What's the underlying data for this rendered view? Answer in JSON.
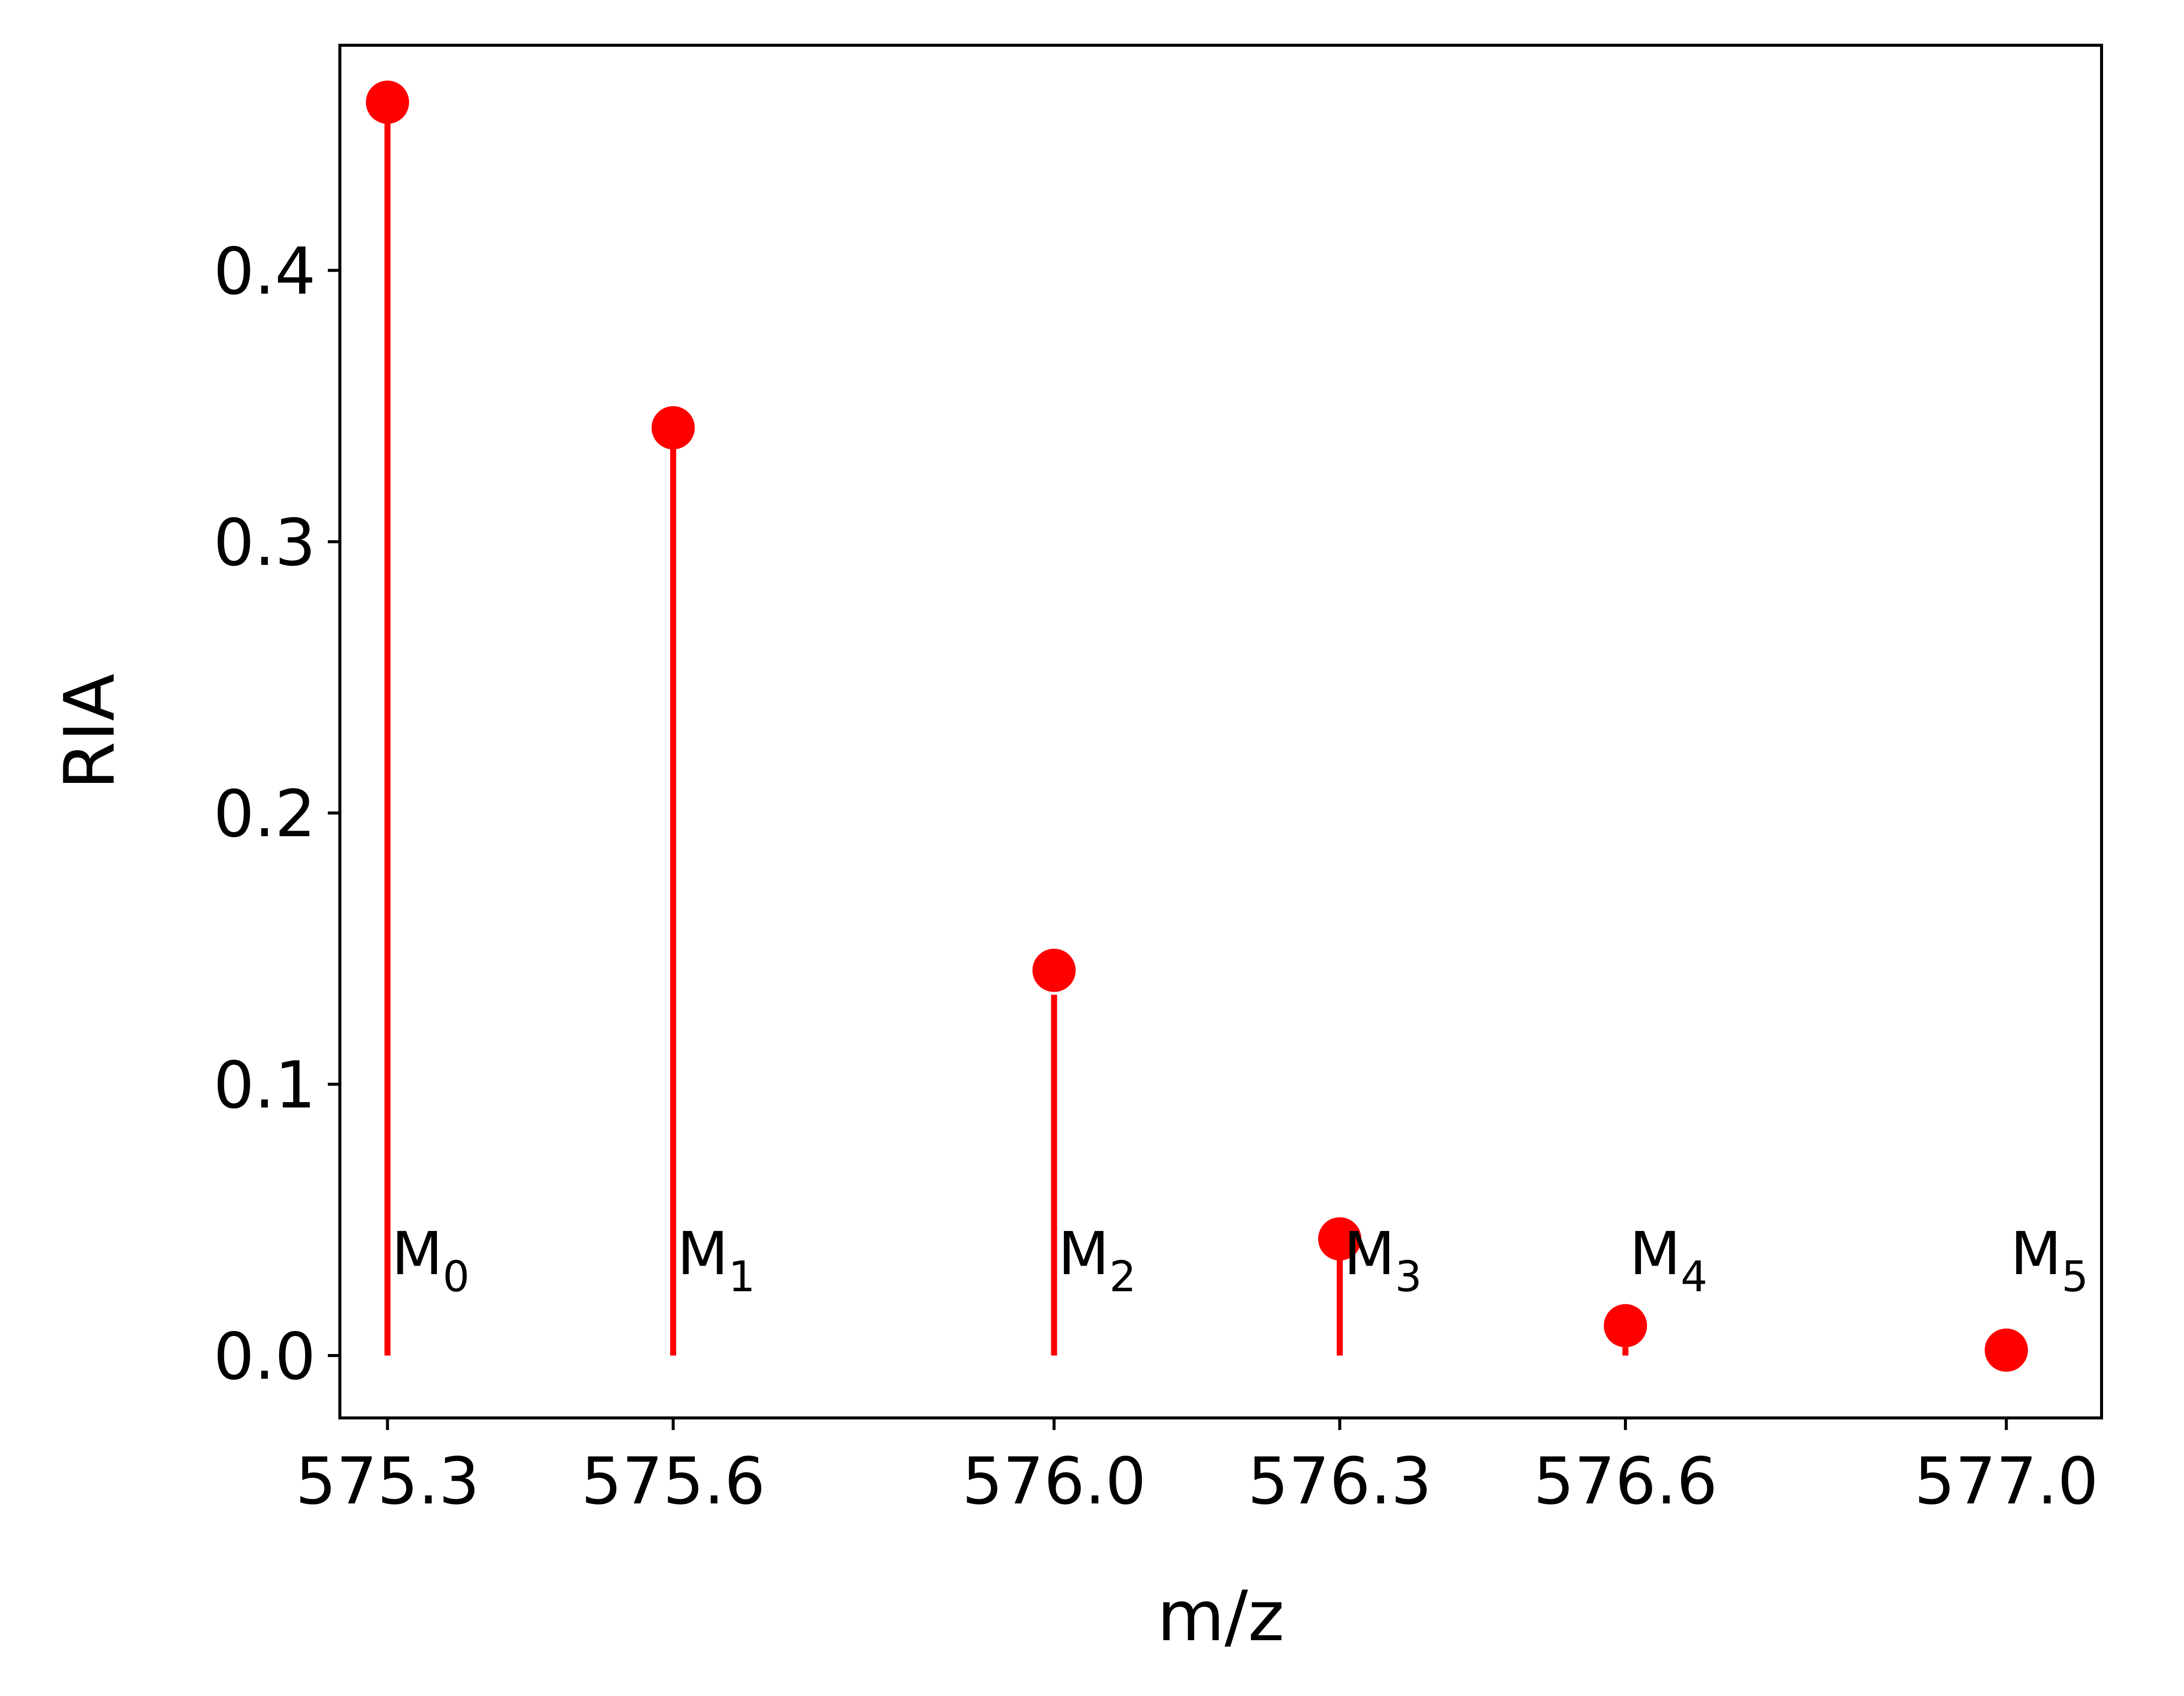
{
  "chart_data": {
    "type": "scatter",
    "title": "",
    "xlabel": "m/z",
    "ylabel": "RIA",
    "xlim": [
      575.25,
      577.1
    ],
    "ylim": [
      -0.023,
      0.483
    ],
    "x_ticks": [
      575.3,
      575.6,
      576.0,
      576.3,
      576.6,
      577.0
    ],
    "x_tick_labels": [
      "575.3",
      "575.6",
      "576.0",
      "576.3",
      "576.6",
      "577.0"
    ],
    "y_ticks": [
      0.0,
      0.1,
      0.2,
      0.3,
      0.4
    ],
    "y_tick_labels": [
      "0.0",
      "0.1",
      "0.2",
      "0.3",
      "0.4"
    ],
    "grid": false,
    "legend": "none",
    "color": "#ff0000",
    "series": [
      {
        "kind": "points",
        "x": [
          575.3,
          575.6,
          576.0,
          576.3,
          576.6,
          577.0
        ],
        "values": [
          0.462,
          0.342,
          0.142,
          0.043,
          0.011,
          0.002
        ]
      },
      {
        "kind": "stems",
        "x": [
          575.3,
          575.6,
          576.0,
          576.3,
          576.6,
          577.0
        ],
        "values": [
          0.462,
          0.337,
          0.133,
          0.037,
          0.003,
          0.0
        ]
      }
    ],
    "annotations": [
      {
        "base": "M",
        "sub": "0",
        "x": 575.3,
        "y": 0.03
      },
      {
        "base": "M",
        "sub": "1",
        "x": 575.6,
        "y": 0.03
      },
      {
        "base": "M",
        "sub": "2",
        "x": 576.0,
        "y": 0.03
      },
      {
        "base": "M",
        "sub": "3",
        "x": 576.3,
        "y": 0.03
      },
      {
        "base": "M",
        "sub": "4",
        "x": 576.6,
        "y": 0.03
      },
      {
        "base": "M",
        "sub": "5",
        "x": 577.0,
        "y": 0.03
      }
    ]
  }
}
